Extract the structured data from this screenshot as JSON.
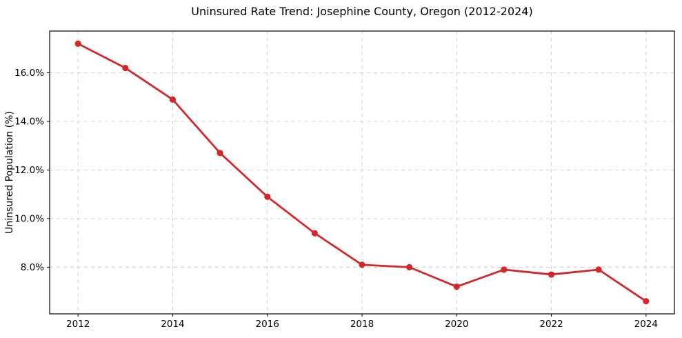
{
  "chart_data": {
    "type": "line",
    "title": "Uninsured Rate Trend: Josephine County, Oregon (2012-2024)",
    "xlabel": "",
    "ylabel": "Uninsured Population (%)",
    "series_name": "uninsured-rate",
    "x": [
      2012,
      2013,
      2014,
      2015,
      2016,
      2017,
      2018,
      2019,
      2020,
      2021,
      2022,
      2023,
      2024
    ],
    "values": [
      17.2,
      16.2,
      14.9,
      12.7,
      10.9,
      9.4,
      8.1,
      8.0,
      7.2,
      7.9,
      7.7,
      7.9,
      6.6
    ],
    "xtick_values": [
      2012,
      2014,
      2016,
      2018,
      2020,
      2022,
      2024
    ],
    "xtick_labels": [
      "2012",
      "2014",
      "2016",
      "2018",
      "2020",
      "2022",
      "2024"
    ],
    "ytick_values": [
      8,
      10,
      12,
      14,
      16
    ],
    "ytick_labels": [
      "8.0%",
      "10.0%",
      "12.0%",
      "14.0%",
      "16.0%"
    ],
    "xlim": [
      2011.4,
      2024.6
    ],
    "ylim": [
      6.08,
      17.72
    ],
    "grid": true,
    "legend_position": "none",
    "line_color": "#d62728",
    "marker_color": "#d62728",
    "grid_color": "#cccccc",
    "axis_color": "#000000",
    "background_color": "#ffffff"
  }
}
